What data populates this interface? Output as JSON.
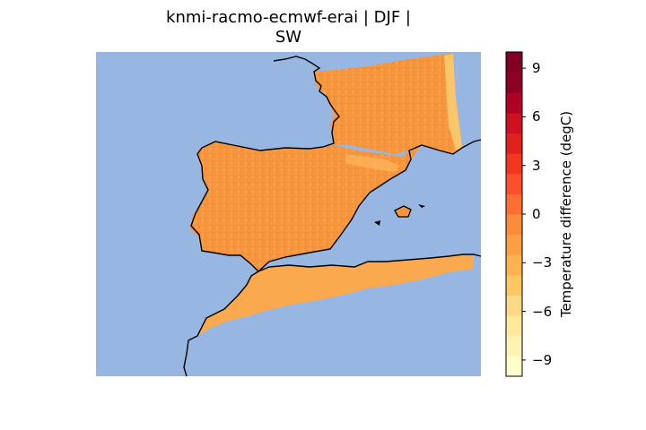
{
  "title": {
    "line1": "knmi-racmo-ecmwf-erai | DJF |",
    "line2": "SW"
  },
  "map": {
    "ocean_color": "#97b6e1",
    "coast_color": "#000000",
    "field_color_main": "#f7953f",
    "field_color_light": "#fba94f",
    "field_color_pale": "#fdd67a"
  },
  "colorbar": {
    "label": "Temperature difference (degC)",
    "range": [
      -10,
      10
    ],
    "ticks": [
      "9",
      "6",
      "3",
      "0",
      "−3",
      "−6",
      "−9"
    ],
    "tick_values": [
      9,
      6,
      3,
      0,
      -3,
      -6,
      -9
    ],
    "colors": [
      "#ffffcc",
      "#fff4b3",
      "#ffe99b",
      "#fed985",
      "#fec763",
      "#feb34f",
      "#fd9f43",
      "#fd8b3c",
      "#fc6f33",
      "#fc4f2b",
      "#f23622",
      "#e3211c",
      "#ce1020",
      "#b10026",
      "#8c0026",
      "#800026"
    ]
  }
}
